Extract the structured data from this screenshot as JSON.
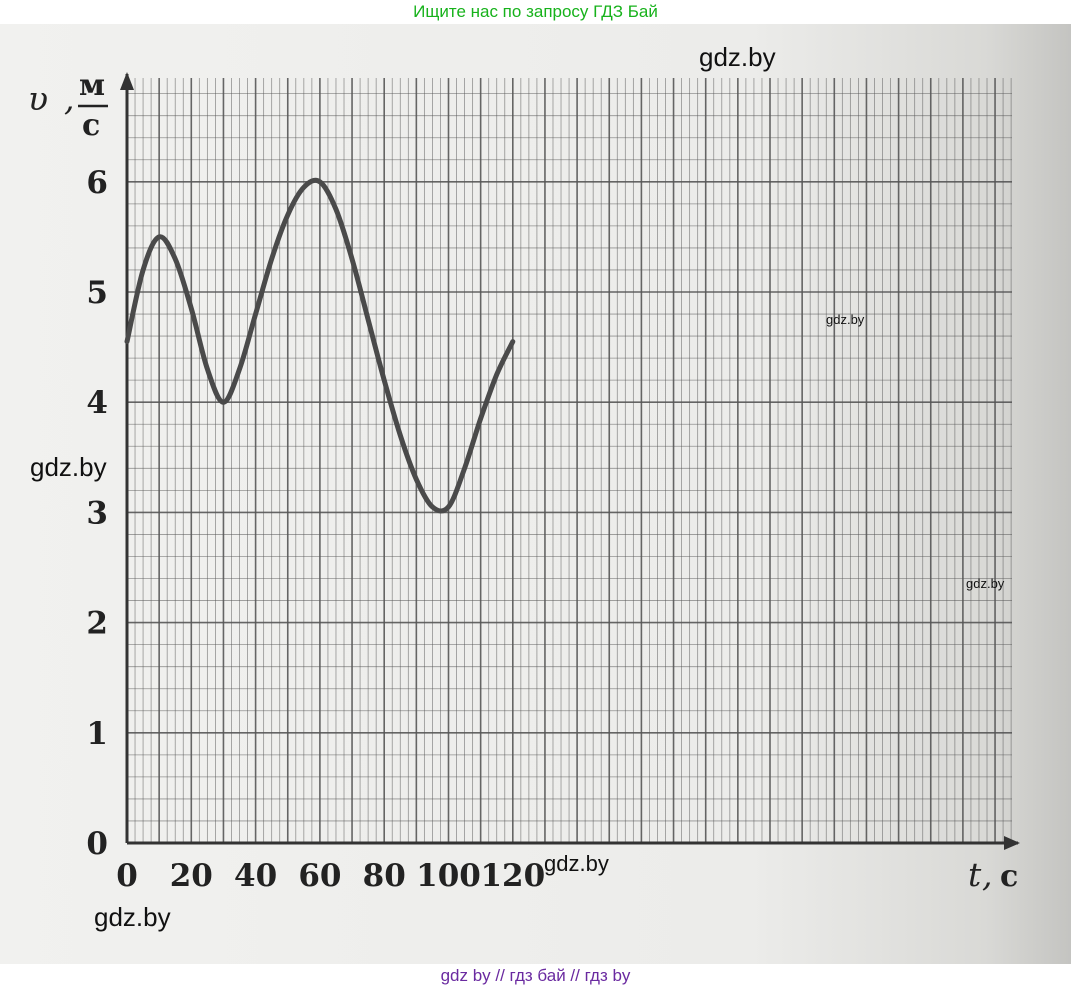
{
  "banner_top": "Ищите нас по запросу ГДЗ Бай",
  "banner_bottom": "gdz by  //  гдз бай  //  гдз by",
  "watermarks": [
    "gdz.by",
    "gdz.by",
    "gdz.by",
    "gdz.by",
    "gdz.by",
    "gdz.by"
  ],
  "colors": {
    "banner_top": "#17b21b",
    "banner_bottom": "#6a2aa0",
    "curve": "#4a4a4a",
    "grid": "#555555"
  },
  "chart_data": {
    "type": "line",
    "title": "",
    "xlabel_var": "t",
    "xlabel_unit": "с",
    "ylabel_var": "υ",
    "ylabel_unit_num": "м",
    "ylabel_unit_den": "с",
    "xlim": [
      0,
      140
    ],
    "ylim": [
      0,
      7
    ],
    "x_ticks": [
      0,
      20,
      40,
      60,
      80,
      100,
      120
    ],
    "y_ticks": [
      0,
      1,
      2,
      3,
      4,
      5,
      6
    ],
    "grid": true,
    "series": [
      {
        "x": [
          0,
          5,
          10,
          15,
          20,
          25,
          30,
          35,
          40,
          45,
          50,
          55,
          60,
          65,
          70,
          75,
          80,
          85,
          90,
          95,
          100,
          105,
          110,
          115,
          120
        ],
        "y": [
          4.55,
          5.2,
          5.5,
          5.3,
          4.85,
          4.3,
          4.0,
          4.3,
          4.8,
          5.3,
          5.7,
          5.95,
          6.0,
          5.75,
          5.3,
          4.75,
          4.2,
          3.7,
          3.3,
          3.05,
          3.05,
          3.4,
          3.85,
          4.25,
          4.55
        ]
      }
    ]
  }
}
